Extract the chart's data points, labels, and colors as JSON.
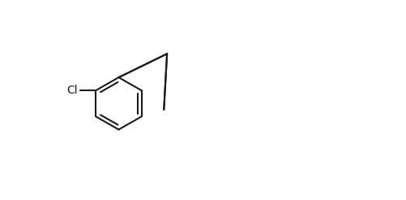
{
  "bg_color": "#ffffff",
  "line_color": "#1a1a1a",
  "line_width": 1.5,
  "font_size": 9,
  "fig_width": 5.02,
  "fig_height": 2.48,
  "dpi": 100
}
